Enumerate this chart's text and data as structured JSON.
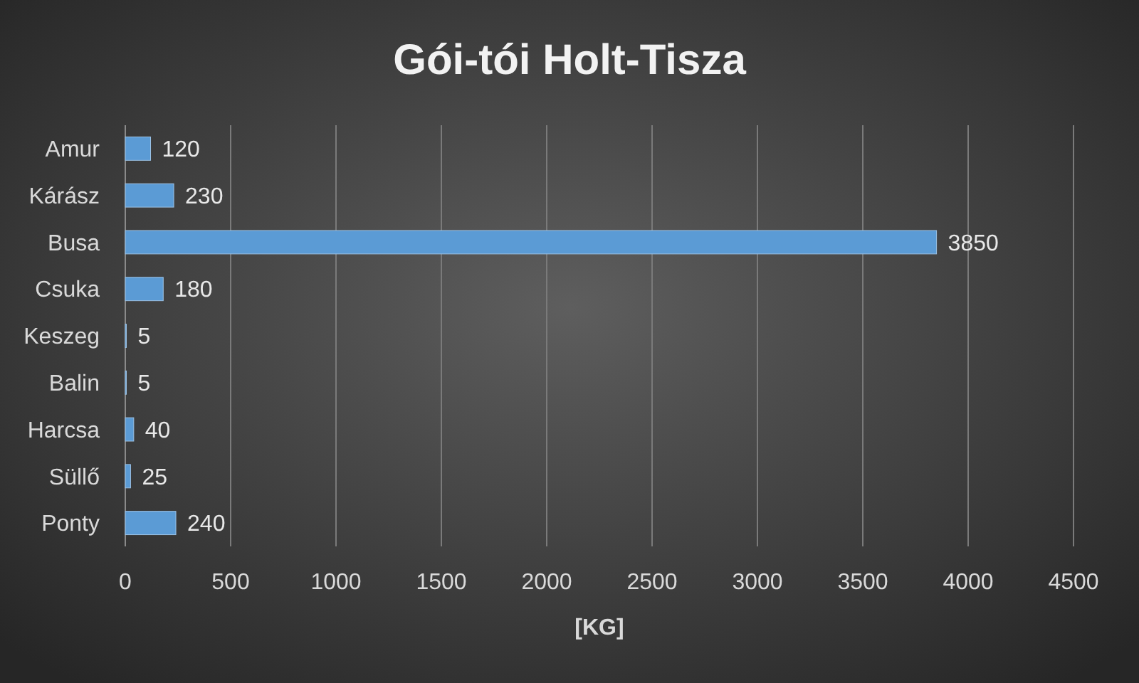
{
  "chart_data": {
    "type": "bar",
    "orientation": "horizontal",
    "title": "Gói-tói Holt-Tisza",
    "xlabel": "[KG]",
    "categories": [
      "Amur",
      "Kárász",
      "Busa",
      "Csuka",
      "Keszeg",
      "Balin",
      "Harcsa",
      "Süllő",
      "Ponty"
    ],
    "values": [
      120,
      230,
      3850,
      180,
      5,
      5,
      40,
      25,
      240
    ],
    "color": "#5b9bd5",
    "xlim": [
      0,
      4500
    ],
    "xticks": [
      0,
      500,
      1000,
      1500,
      2000,
      2500,
      3000,
      3500,
      4000,
      4500
    ],
    "grid": "x",
    "data_labels": true
  }
}
